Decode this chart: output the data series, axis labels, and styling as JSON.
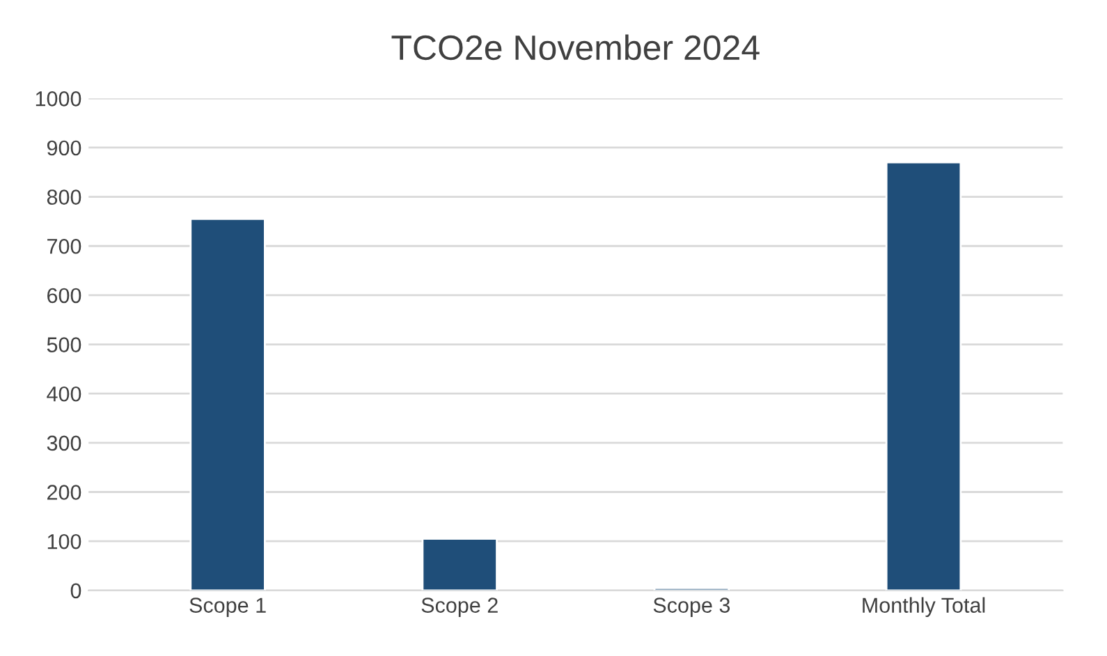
{
  "chart_data": {
    "type": "bar",
    "title": "TCO2e November 2024",
    "categories": [
      "Scope 1",
      "Scope 2",
      "Scope 3",
      "Monthly Total"
    ],
    "values": [
      755,
      105,
      5,
      870
    ],
    "color": "#1f4e79",
    "ylim": [
      0,
      1000
    ],
    "yticks": [
      0,
      100,
      200,
      300,
      400,
      500,
      600,
      700,
      800,
      900,
      1000
    ],
    "grid": "y",
    "legend": false
  }
}
